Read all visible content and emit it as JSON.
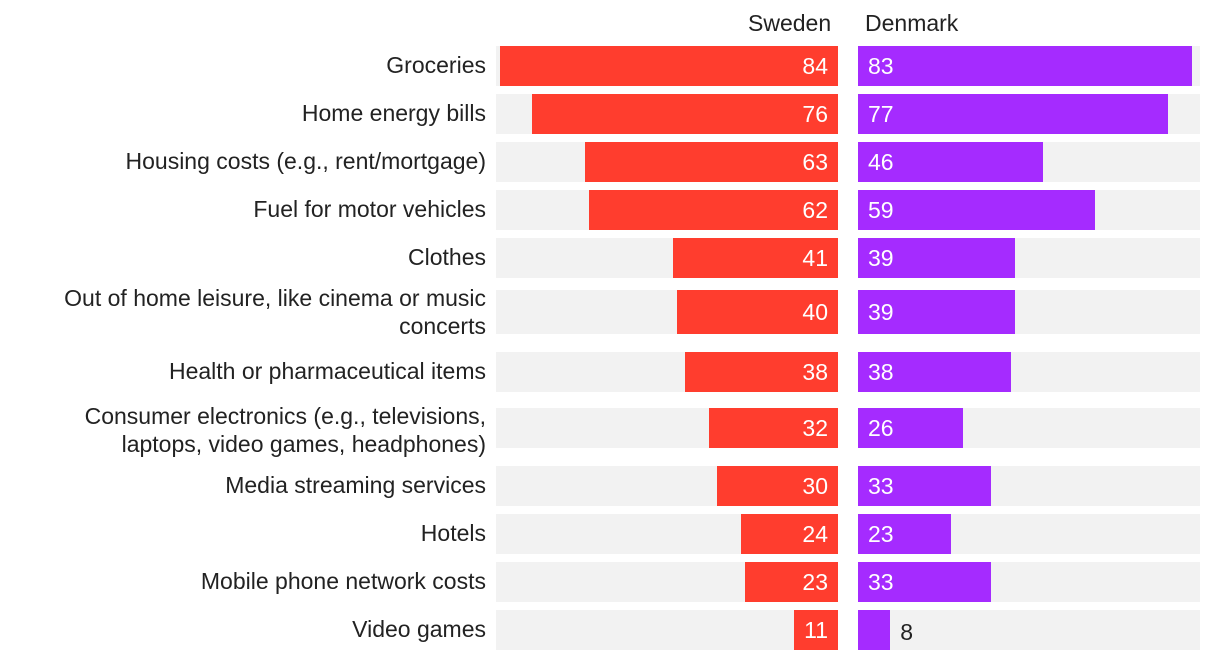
{
  "chart_data": {
    "type": "bar",
    "orientation": "horizontal",
    "layout": "diverging-pair",
    "series": [
      {
        "name": "Sweden",
        "color": "#ff3d2e",
        "values": [
          84,
          76,
          63,
          62,
          41,
          40,
          38,
          32,
          30,
          24,
          23,
          11
        ]
      },
      {
        "name": "Denmark",
        "color": "#a52bff",
        "values": [
          83,
          77,
          46,
          59,
          39,
          39,
          38,
          26,
          33,
          23,
          33,
          8
        ]
      }
    ],
    "categories": [
      "Groceries",
      "Home energy bills",
      "Housing costs (e.g., rent/mortgage)",
      "Fuel for motor vehicles",
      "Clothes",
      "Out of home leisure, like cinema or music concerts",
      "Health or pharmaceutical items",
      "Consumer electronics (e.g., televisions, laptops, video games, headphones)",
      "Media streaming services",
      "Hotels",
      "Mobile phone network costs",
      "Video games"
    ],
    "xlim": [
      0,
      85
    ],
    "track_color": "#f2f2f2"
  }
}
